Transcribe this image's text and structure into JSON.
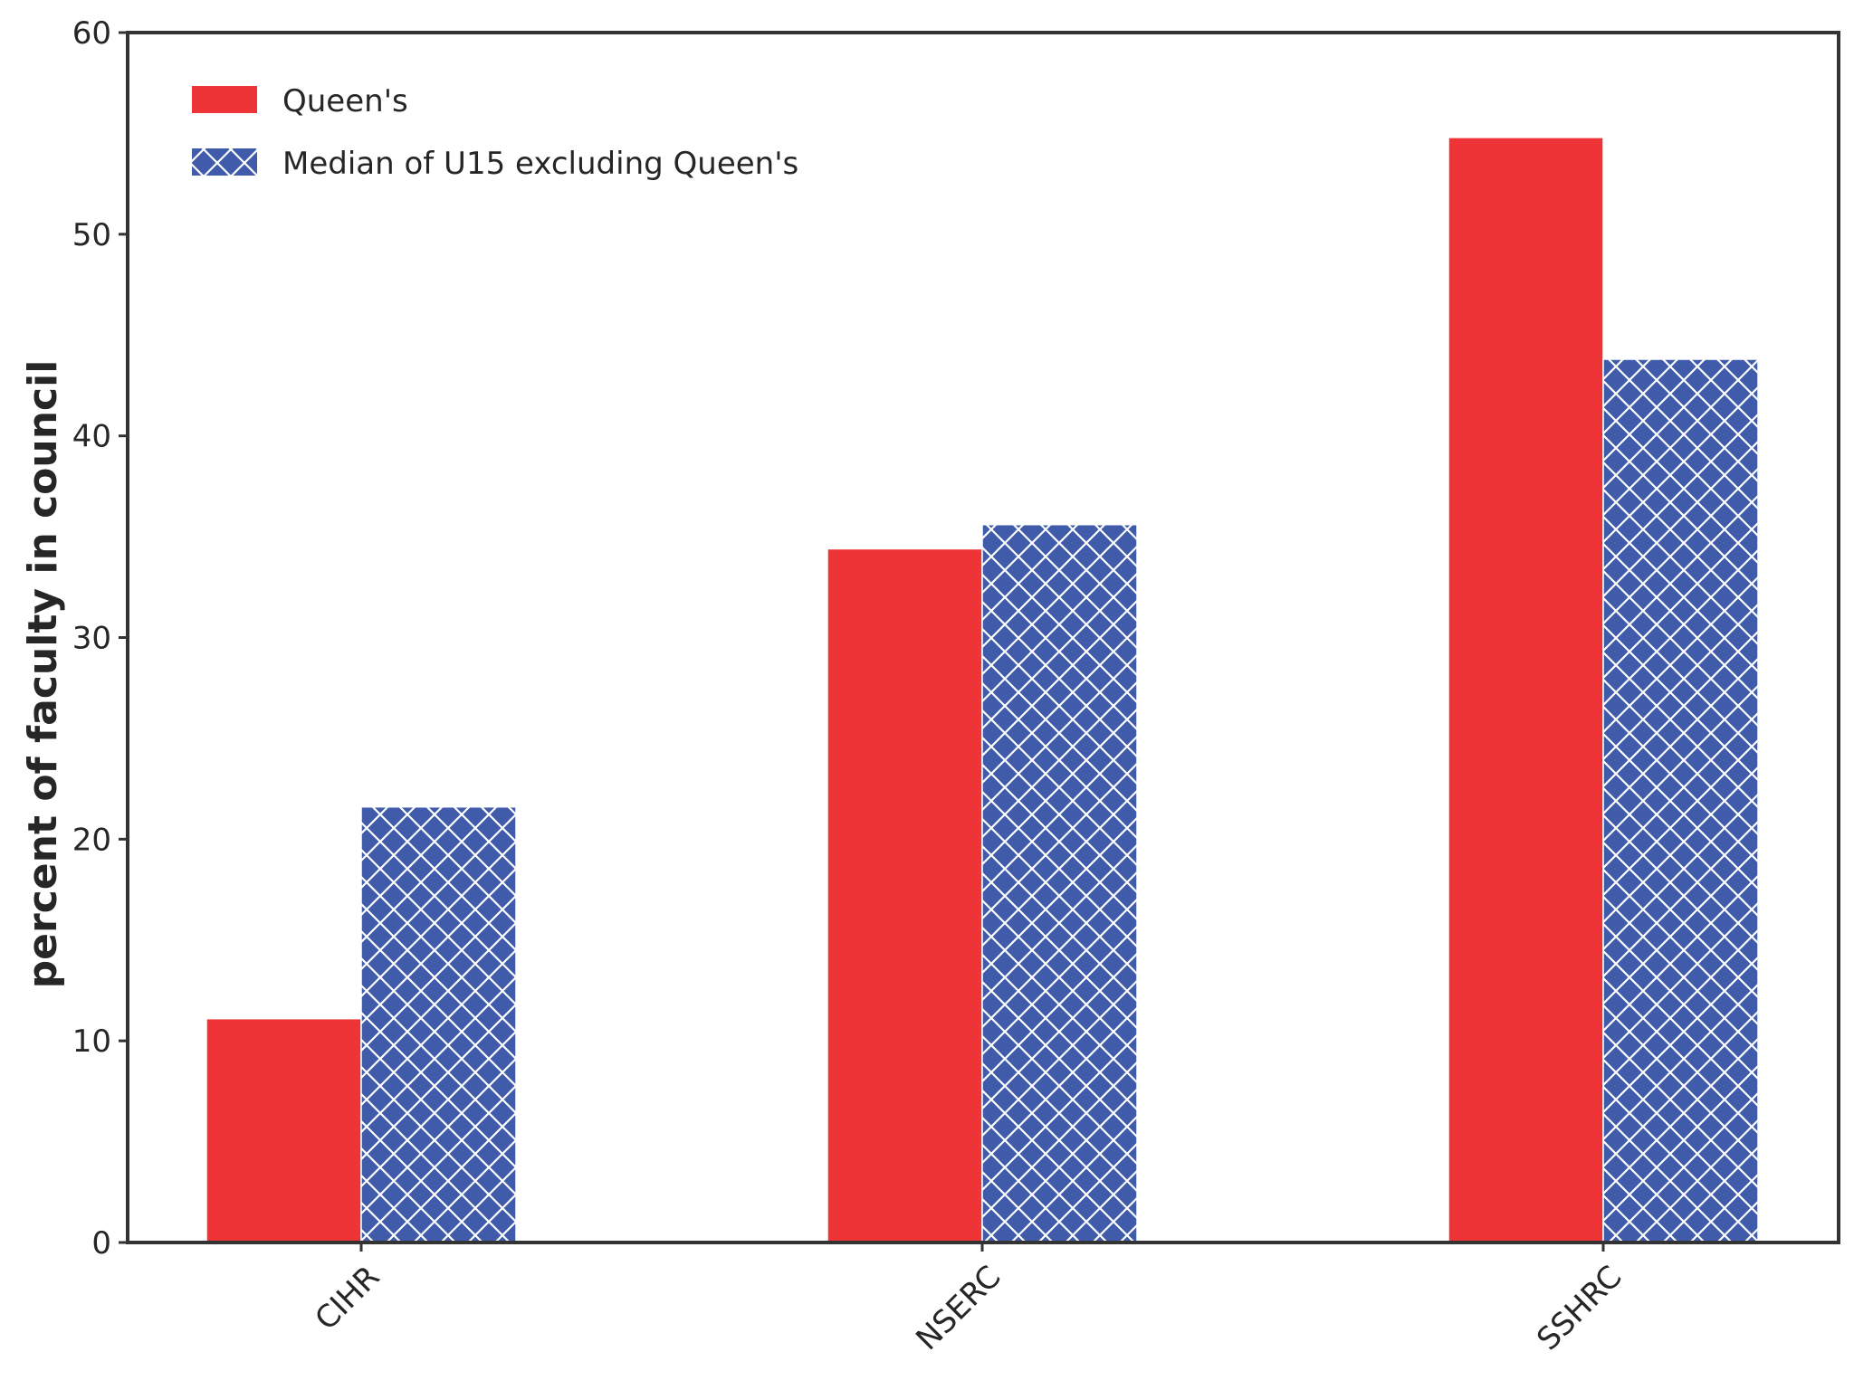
{
  "chart_data": {
    "type": "bar",
    "title": "",
    "xlabel": "",
    "ylabel": "percent of faculty in council",
    "ylim": [
      0,
      60
    ],
    "yticks": [
      0,
      10,
      20,
      30,
      40,
      50,
      60
    ],
    "categories": [
      "CIHR",
      "NSERC",
      "SSHRC"
    ],
    "series": [
      {
        "name": "Queen's",
        "values": [
          11.1,
          34.4,
          54.8
        ],
        "color": "#ee3437",
        "pattern": "solid"
      },
      {
        "name": "Median of U15 excluding Queen's",
        "values": [
          21.6,
          35.6,
          43.8
        ],
        "color": "#3f5ba9",
        "pattern": "crosshatch"
      }
    ],
    "legend_position": "top-left",
    "grid": false
  }
}
